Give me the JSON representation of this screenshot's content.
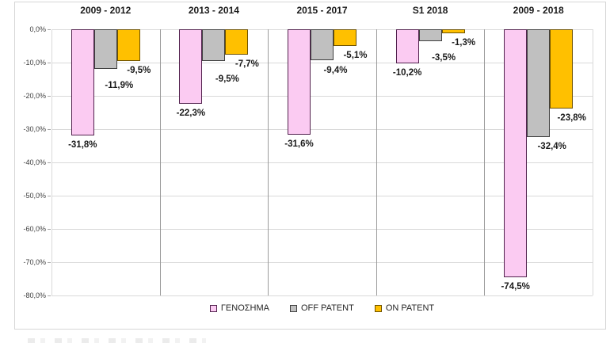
{
  "chart_data": {
    "type": "bar",
    "title": "",
    "categories": [
      "2009 - 2012",
      "2013 - 2014",
      "2015 - 2017",
      "S1 2018",
      "2009 - 2018"
    ],
    "series": [
      {
        "name": "ΓΕΝΟΣΗΜΑ",
        "color": "#FBCBF2",
        "border_color": "#52224e",
        "values": [
          -31.8,
          -22.3,
          -31.6,
          -10.2,
          -74.5
        ],
        "labels": [
          "-31,8%",
          "-22,3%",
          "-31,6%",
          "-10,2%",
          "-74,5%"
        ]
      },
      {
        "name": "OFF PATENT",
        "color": "#C0C0C0",
        "border_color": "#404040",
        "values": [
          -11.9,
          -9.5,
          -9.4,
          -3.5,
          -32.4
        ],
        "labels": [
          "-11,9%",
          "-9,5%",
          "-9,4%",
          "-3,5%",
          "-32,4%"
        ]
      },
      {
        "name": "ON PATENT",
        "color": "#FFC000",
        "border_color": "#6e5200",
        "values": [
          -9.5,
          -7.7,
          -5.1,
          -1.3,
          -23.8
        ],
        "labels": [
          "-9,5%",
          "-7,7%",
          "-5,1%",
          "-1,3%",
          "-23,8%"
        ]
      }
    ],
    "xlabel": "",
    "ylabel": "",
    "ylim": [
      -80,
      0
    ],
    "ytick_step": 10,
    "ytick_labels": [
      "0,0%",
      "-10,0%",
      "-20,0%",
      "-30,0%",
      "-40,0%",
      "-50,0%",
      "-60,0%",
      "-70,0%",
      "-80,0%"
    ],
    "grid": true,
    "legend_position": "bottom",
    "panel_separators": true
  }
}
